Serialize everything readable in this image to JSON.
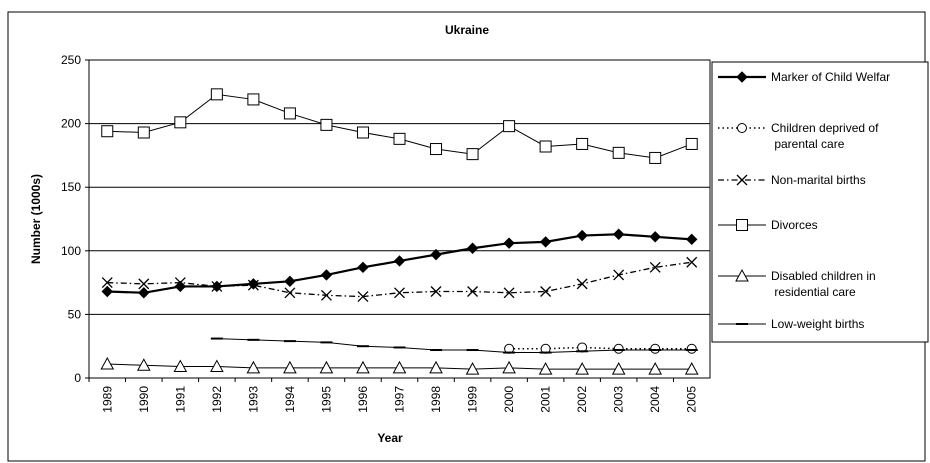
{
  "chart_data": {
    "type": "line",
    "title": "Ukraine",
    "x_label": "Year",
    "y_label": "Number (1000s)",
    "categories": [
      "1989",
      "1990",
      "1991",
      "1992",
      "1993",
      "1994",
      "1995",
      "1996",
      "1997",
      "1998",
      "1999",
      "2000",
      "2001",
      "2002",
      "2003",
      "2004",
      "2005"
    ],
    "ylim": [
      0,
      250
    ],
    "yticks": [
      0,
      50,
      100,
      150,
      200,
      250
    ],
    "grid": true,
    "legend": "right",
    "series": [
      {
        "name": "Marker of Child Welfar",
        "color": "#000000",
        "marker": "diamond",
        "line_style": "thick",
        "values": [
          68,
          67,
          72,
          72,
          74,
          76,
          81,
          87,
          92,
          97,
          102,
          106,
          107,
          112,
          113,
          111,
          109
        ]
      },
      {
        "name": "Children deprived of parental care",
        "color": "#000000",
        "marker": "circle",
        "line_style": "dotted",
        "values": [
          null,
          null,
          null,
          null,
          null,
          null,
          null,
          null,
          null,
          null,
          null,
          23,
          23,
          24,
          23,
          23,
          23
        ]
      },
      {
        "name": "Non-marital births",
        "color": "#000000",
        "marker": "x",
        "line_style": "dashdot",
        "values": [
          75,
          74,
          75,
          72,
          73,
          67,
          65,
          64,
          67,
          68,
          68,
          67,
          68,
          74,
          81,
          87,
          91
        ]
      },
      {
        "name": "Divorces",
        "color": "#000000",
        "marker": "square",
        "line_style": "solid",
        "values": [
          194,
          193,
          201,
          223,
          219,
          208,
          199,
          193,
          188,
          180,
          176,
          198,
          182,
          184,
          177,
          173,
          184
        ]
      },
      {
        "name": "Disabled children in residential care",
        "color": "#000000",
        "marker": "triangle",
        "line_style": "solid",
        "values": [
          11,
          10,
          9,
          9,
          8,
          8,
          8,
          8,
          8,
          8,
          7,
          8,
          7,
          7,
          7,
          7,
          7
        ]
      },
      {
        "name": "Low-weight births",
        "color": "#000000",
        "marker": "dash",
        "line_style": "solid",
        "values": [
          null,
          null,
          null,
          31,
          30,
          29,
          28,
          25,
          24,
          22,
          22,
          20,
          20,
          21,
          22,
          22,
          22
        ]
      }
    ]
  }
}
